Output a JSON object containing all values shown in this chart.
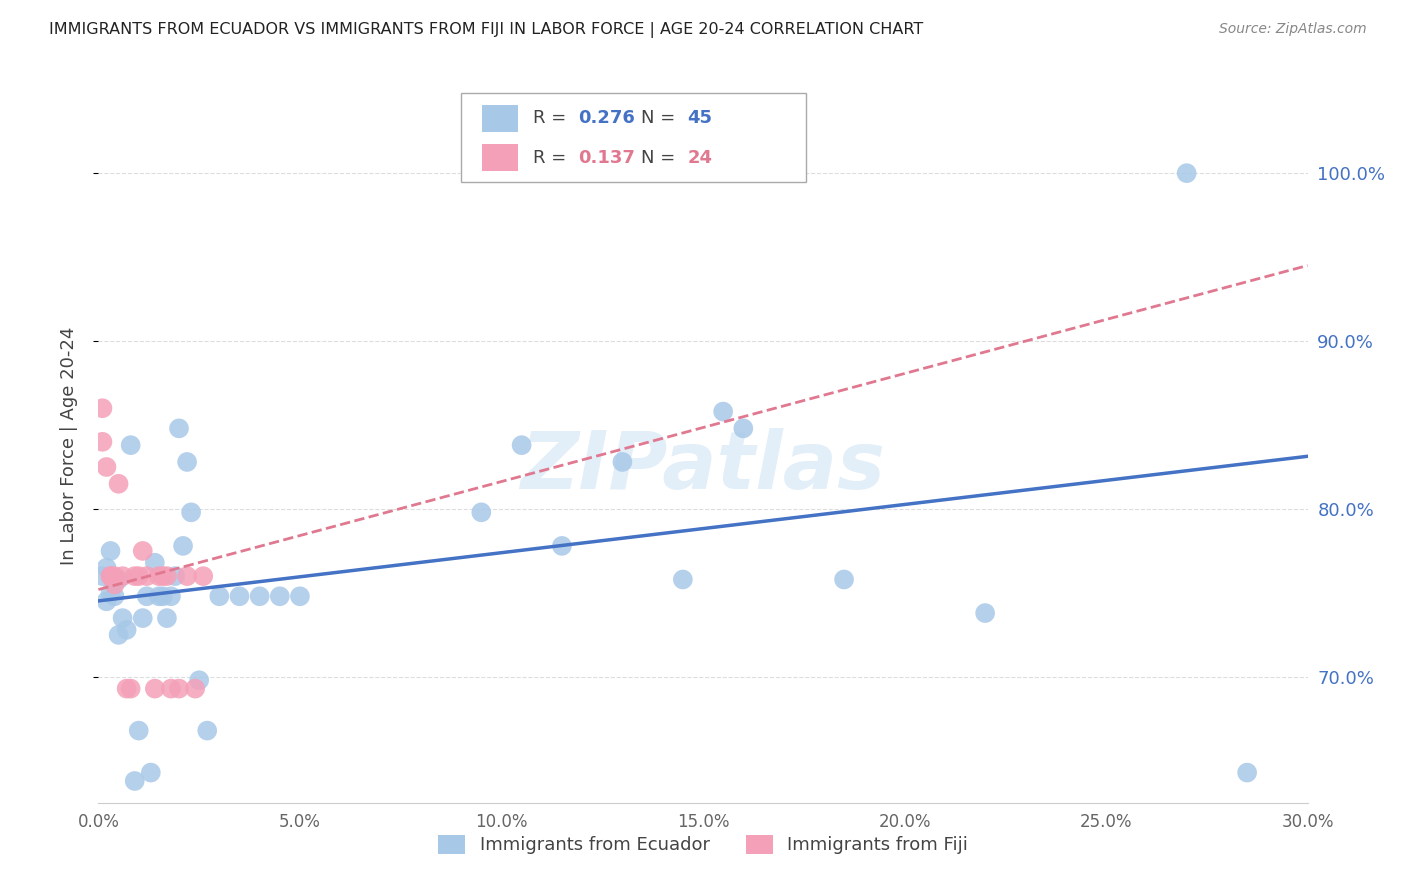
{
  "title": "IMMIGRANTS FROM ECUADOR VS IMMIGRANTS FROM FIJI IN LABOR FORCE | AGE 20-24 CORRELATION CHART",
  "source": "Source: ZipAtlas.com",
  "ylabel": "In Labor Force | Age 20-24",
  "xlim": [
    0.0,
    0.3
  ],
  "ylim": [
    0.625,
    1.05
  ],
  "ecuador_color": "#a8c8e8",
  "fiji_color": "#f4a0b8",
  "ecuador_line_color": "#4472C4",
  "fiji_line_color": "#e07890",
  "ecuador_label": "Immigrants from Ecuador",
  "fiji_label": "Immigrants from Fiji",
  "ecuador_R": "0.276",
  "ecuador_N": "45",
  "fiji_R": "0.137",
  "fiji_N": "24",
  "watermark": "ZIPatlas",
  "ecuador_x": [
    0.001,
    0.002,
    0.002,
    0.003,
    0.003,
    0.004,
    0.004,
    0.005,
    0.005,
    0.006,
    0.007,
    0.008,
    0.009,
    0.01,
    0.011,
    0.012,
    0.013,
    0.014,
    0.015,
    0.016,
    0.017,
    0.018,
    0.019,
    0.02,
    0.021,
    0.022,
    0.023,
    0.025,
    0.027,
    0.03,
    0.035,
    0.04,
    0.045,
    0.05,
    0.095,
    0.105,
    0.115,
    0.13,
    0.145,
    0.155,
    0.16,
    0.185,
    0.22,
    0.27,
    0.285
  ],
  "ecuador_y": [
    0.76,
    0.765,
    0.745,
    0.775,
    0.75,
    0.758,
    0.748,
    0.758,
    0.725,
    0.735,
    0.728,
    0.838,
    0.638,
    0.668,
    0.735,
    0.748,
    0.643,
    0.768,
    0.748,
    0.748,
    0.735,
    0.748,
    0.76,
    0.848,
    0.778,
    0.828,
    0.798,
    0.698,
    0.668,
    0.748,
    0.748,
    0.748,
    0.748,
    0.748,
    0.798,
    0.838,
    0.778,
    0.828,
    0.758,
    0.858,
    0.848,
    0.758,
    0.738,
    1.0,
    0.643
  ],
  "fiji_x": [
    0.001,
    0.001,
    0.002,
    0.003,
    0.003,
    0.004,
    0.004,
    0.005,
    0.006,
    0.007,
    0.008,
    0.009,
    0.01,
    0.011,
    0.012,
    0.014,
    0.015,
    0.016,
    0.017,
    0.018,
    0.02,
    0.022,
    0.024,
    0.026
  ],
  "fiji_y": [
    0.86,
    0.84,
    0.825,
    0.76,
    0.76,
    0.76,
    0.755,
    0.815,
    0.76,
    0.693,
    0.693,
    0.76,
    0.76,
    0.775,
    0.76,
    0.693,
    0.76,
    0.76,
    0.76,
    0.693,
    0.693,
    0.76,
    0.693,
    0.76
  ]
}
